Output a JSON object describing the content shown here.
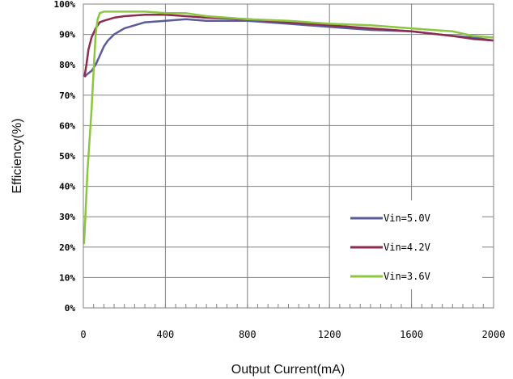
{
  "chart_data": {
    "type": "line",
    "xlabel": "Output Current(mA)",
    "ylabel": "Efficiency(%)",
    "xlim": [
      0,
      2000
    ],
    "ylim": [
      0,
      100
    ],
    "x_ticks": [
      "0",
      "400",
      "800",
      "1200",
      "1600",
      "2000"
    ],
    "y_ticks": [
      "0%",
      "10%",
      "20%",
      "30%",
      "40%",
      "50%",
      "60%",
      "70%",
      "80%",
      "90%",
      "100%"
    ],
    "grid": true,
    "legend_position": "bottom-right",
    "series": [
      {
        "name": "Vin=5.0V",
        "color": "#5b5b9c",
        "x": [
          5,
          20,
          40,
          60,
          80,
          100,
          120,
          150,
          200,
          250,
          300,
          400,
          500,
          600,
          800,
          1000,
          1200,
          1400,
          1600,
          1800,
          1900,
          2000
        ],
        "y": [
          76,
          77,
          78,
          80,
          83,
          86,
          88,
          90,
          92,
          93,
          94,
          94.5,
          95,
          94.5,
          94.5,
          93.5,
          92.5,
          91.5,
          91,
          89.5,
          89,
          88
        ]
      },
      {
        "name": "Vin=4.2V",
        "color": "#8c2d4e",
        "x": [
          5,
          15,
          25,
          40,
          60,
          80,
          100,
          150,
          200,
          300,
          400,
          500,
          600,
          800,
          1000,
          1200,
          1400,
          1600,
          1800,
          1900,
          2000
        ],
        "y": [
          76,
          80,
          85,
          89,
          92,
          94,
          94.5,
          95.5,
          96,
          96.5,
          96.5,
          96,
          95.5,
          95,
          94,
          93,
          92,
          91,
          89.5,
          88.5,
          88
        ]
      },
      {
        "name": "Vin=3.6V",
        "color": "#8cc63f",
        "x": [
          3,
          10,
          20,
          30,
          40,
          50,
          60,
          70,
          80,
          100,
          150,
          200,
          300,
          400,
          500,
          600,
          800,
          1000,
          1200,
          1400,
          1600,
          1700,
          1800,
          1900,
          2000
        ],
        "y": [
          21,
          30,
          45,
          55,
          65,
          78,
          90,
          95,
          97,
          97.5,
          97.5,
          97.5,
          97.5,
          97,
          97,
          96,
          95,
          94.5,
          93.5,
          93,
          92,
          91.5,
          91,
          89.5,
          89
        ]
      }
    ]
  }
}
